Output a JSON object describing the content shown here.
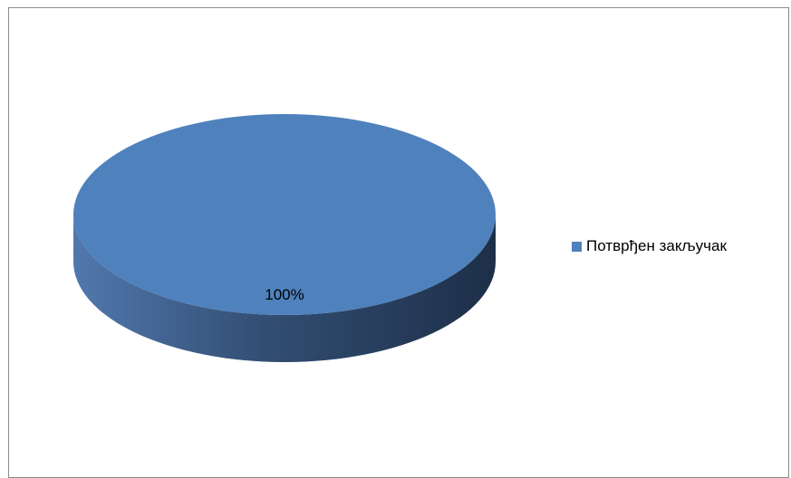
{
  "chart_data": {
    "type": "pie",
    "categories": [
      "Потврђен закључак"
    ],
    "values": [
      100
    ],
    "data_labels": [
      "100%"
    ],
    "colors": [
      "#4f81bd"
    ],
    "legend_position": "right",
    "title": ""
  }
}
